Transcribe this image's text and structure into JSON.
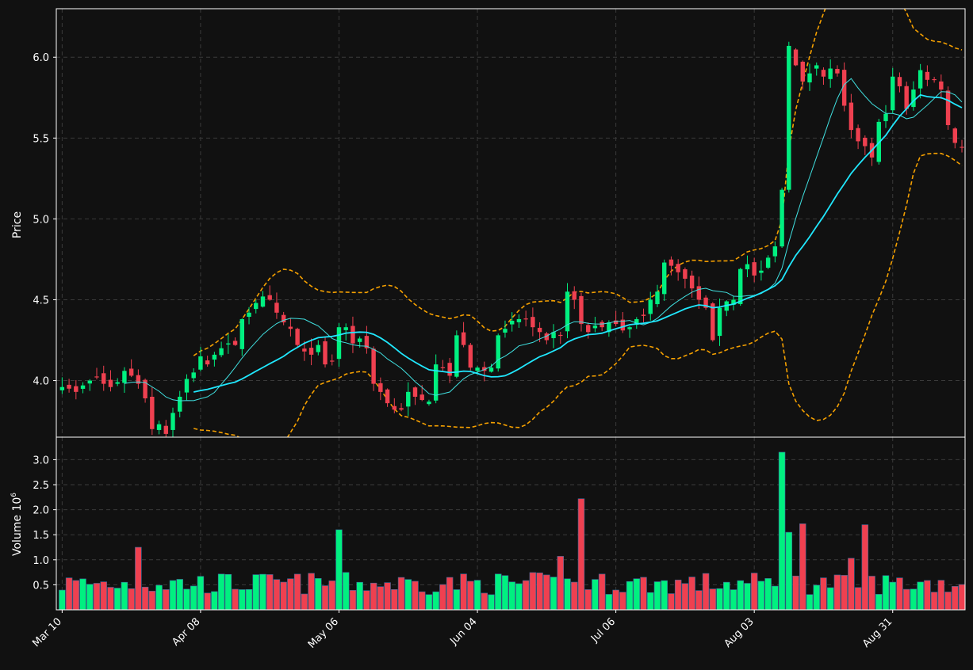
{
  "chart_data": {
    "type": "candlestick",
    "price_panel": {
      "ylabel": "Price",
      "ylim": [
        3.65,
        6.3
      ],
      "yticks": [
        "4.0",
        "4.5",
        "5.0",
        "5.5",
        "6.0"
      ],
      "grid": true
    },
    "volume_panel": {
      "ylabel": "Volume",
      "ylabel_exponent": "10",
      "ylabel_exponent_power": "6",
      "ylim": [
        0,
        3.45
      ],
      "yticks": [
        "0.5",
        "1.0",
        "1.5",
        "2.0",
        "2.5",
        "3.0"
      ],
      "grid": true
    },
    "xticks": [
      {
        "index": 0,
        "label": "Mar 10"
      },
      {
        "index": 20,
        "label": "Apr 08"
      },
      {
        "index": 40,
        "label": "May 06"
      },
      {
        "index": 60,
        "label": "Jun 04"
      },
      {
        "index": 80,
        "label": "Jul 06"
      },
      {
        "index": 100,
        "label": "Aug 03"
      },
      {
        "index": 120,
        "label": "Aug 31"
      }
    ],
    "close": [
      3.96,
      3.95,
      3.93,
      3.97,
      4.0,
      4.02,
      3.98,
      3.96,
      3.99,
      4.06,
      4.03,
      3.98,
      3.89,
      3.7,
      3.73,
      3.67,
      3.8,
      3.9,
      4.01,
      4.05,
      4.15,
      4.1,
      4.16,
      4.2,
      4.23,
      4.22,
      4.38,
      4.42,
      4.48,
      4.52,
      4.5,
      4.42,
      4.36,
      4.32,
      4.22,
      4.18,
      4.16,
      4.22,
      4.1,
      4.12,
      4.33,
      4.33,
      4.23,
      4.26,
      4.2,
      3.98,
      3.93,
      3.86,
      3.82,
      3.82,
      3.93,
      3.9,
      3.88,
      3.87,
      4.1,
      4.08,
      4.03,
      4.28,
      4.22,
      4.08,
      4.08,
      4.06,
      4.08,
      4.28,
      4.32,
      4.37,
      4.38,
      4.38,
      4.33,
      4.3,
      4.25,
      4.3,
      4.28,
      4.55,
      4.5,
      4.35,
      4.3,
      4.34,
      4.33,
      4.36,
      4.35,
      4.31,
      4.33,
      4.38,
      4.4,
      4.5,
      4.55,
      4.73,
      4.71,
      4.67,
      4.63,
      4.57,
      4.5,
      4.45,
      4.25,
      4.45,
      4.49,
      4.5,
      4.69,
      4.72,
      4.65,
      4.68,
      4.76,
      4.83,
      5.18,
      6.07,
      5.95,
      5.85,
      5.9,
      5.95,
      5.88,
      5.93,
      5.9,
      5.7,
      5.55,
      5.48,
      5.45,
      5.38,
      5.6,
      5.65,
      5.88,
      5.82,
      5.68,
      5.8,
      5.92,
      5.86,
      5.86,
      5.8,
      5.58,
      5.47,
      5.44
    ]
  }
}
